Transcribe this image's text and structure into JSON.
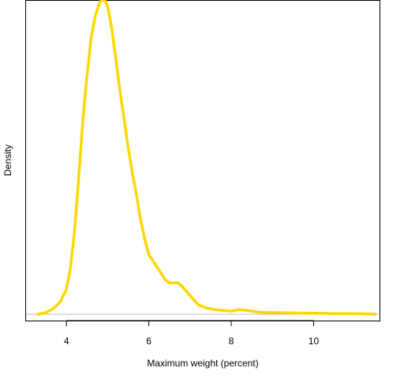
{
  "chart_data": {
    "type": "line",
    "title": "",
    "xlabel": "Maximum weight (percent)",
    "ylabel": "Density",
    "xlim": [
      3.0,
      11.6
    ],
    "ylim": [
      -0.02,
      1.0
    ],
    "x_ticks": [
      4,
      6,
      8,
      10
    ],
    "x_tick_labels": [
      "4",
      "6",
      "8",
      "10"
    ],
    "baseline_y": 0,
    "grid": false,
    "legend": "none",
    "line_color": "#FFD700",
    "baseline_color": "#BEBEBE",
    "series": [
      {
        "x": [
          3.3,
          3.5,
          3.7,
          3.85,
          4.0,
          4.1,
          4.2,
          4.3,
          4.4,
          4.5,
          4.6,
          4.7,
          4.8,
          4.85,
          4.9,
          4.95,
          5.0,
          5.1,
          5.2,
          5.3,
          5.4,
          5.5,
          5.6,
          5.7,
          5.8,
          5.9,
          6.0,
          6.2,
          6.4,
          6.5,
          6.6,
          6.7,
          6.8,
          7.0,
          7.2,
          7.4,
          7.6,
          7.8,
          8.0,
          8.2,
          8.4,
          8.6,
          8.8,
          9.0,
          9.5,
          10.0,
          10.5,
          11.0,
          11.5
        ],
        "y": [
          0.0,
          0.005,
          0.02,
          0.04,
          0.08,
          0.15,
          0.27,
          0.44,
          0.62,
          0.76,
          0.88,
          0.95,
          0.99,
          1.0,
          1.0,
          0.995,
          0.98,
          0.91,
          0.81,
          0.71,
          0.62,
          0.53,
          0.45,
          0.38,
          0.3,
          0.24,
          0.19,
          0.15,
          0.11,
          0.1,
          0.1,
          0.1,
          0.09,
          0.06,
          0.03,
          0.02,
          0.015,
          0.012,
          0.01,
          0.015,
          0.012,
          0.008,
          0.006,
          0.006,
          0.004,
          0.003,
          0.002,
          0.002,
          0.0
        ]
      }
    ]
  }
}
